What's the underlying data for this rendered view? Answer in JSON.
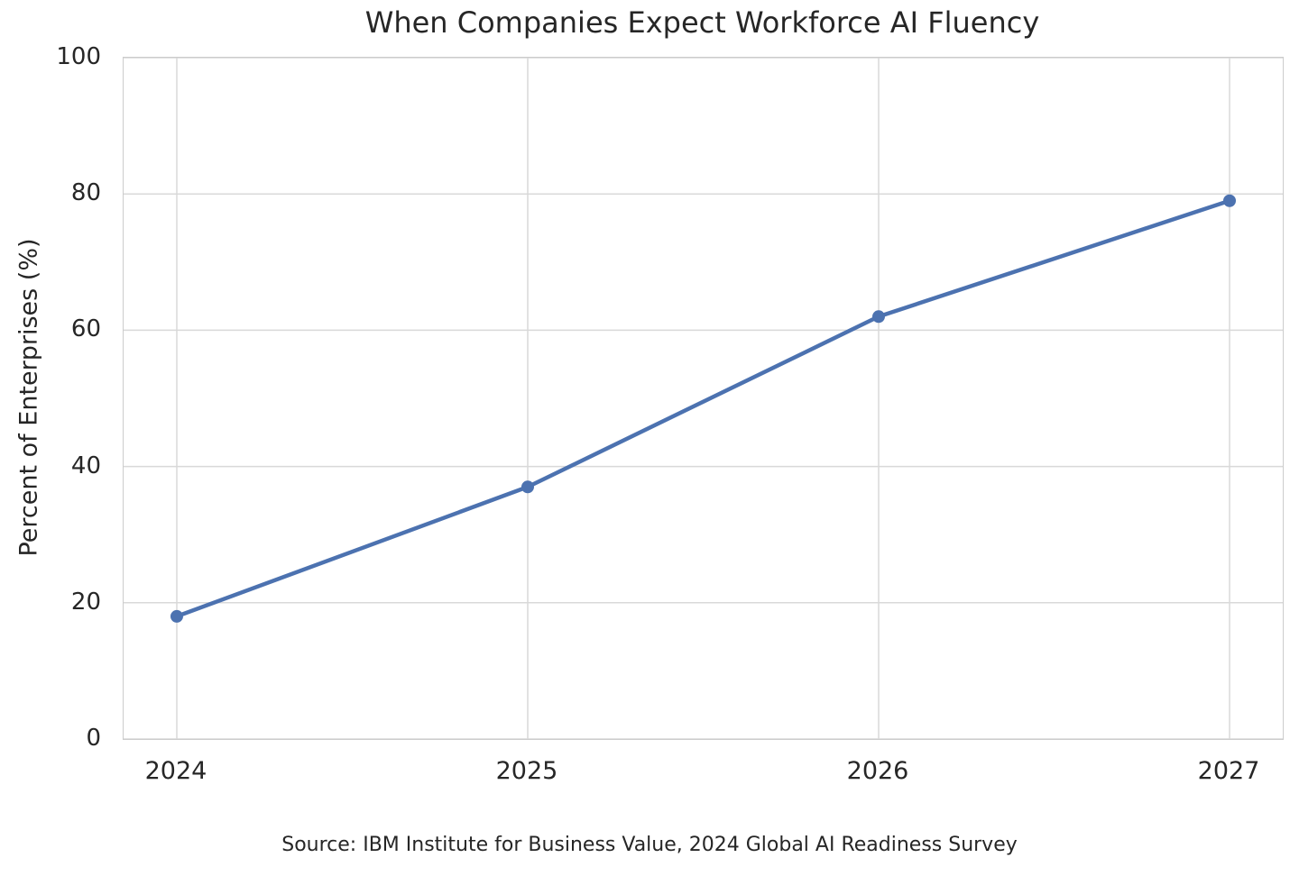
{
  "chart_data": {
    "type": "line",
    "title": "When Companies Expect Workforce AI Fluency",
    "categories": [
      "2024",
      "2025",
      "2026",
      "2027"
    ],
    "values": [
      18,
      37,
      62,
      79
    ],
    "xlabel": "",
    "ylabel": "Percent of Enterprises (%)",
    "ylim": [
      0,
      100
    ],
    "yticks": [
      0,
      20,
      40,
      60,
      80,
      100
    ],
    "grid": true,
    "legend": false,
    "source_note": "Source: IBM Institute for Business Value, 2024 Global AI Readiness Survey",
    "colors": {
      "line": "#4C72B0",
      "marker": "#4C72B0",
      "grid": "#d9d9d9",
      "spine": "#cccccc",
      "text": "#262626",
      "background": "#ffffff"
    }
  }
}
